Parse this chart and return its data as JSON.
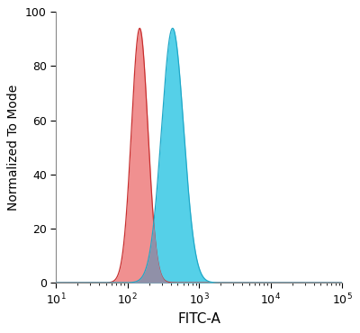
{
  "xlabel": "FITC-A",
  "ylabel": "Normalized To Mode",
  "xlim_log": [
    1,
    5
  ],
  "ylim": [
    0,
    100
  ],
  "yticks": [
    0,
    20,
    40,
    60,
    80,
    100
  ],
  "xtick_positions": [
    10,
    100,
    1000,
    10000,
    100000
  ],
  "red_peak_log": 2.17,
  "red_peak_height": 94,
  "red_sigma_log": 0.115,
  "blue_peak_log": 2.63,
  "blue_peak_height": 94,
  "blue_sigma_log": 0.155,
  "red_fill_color": "#f09090",
  "red_edge_color": "#c83030",
  "blue_fill_color": "#55d0e8",
  "blue_edge_color": "#20a8c8",
  "overlap_color": "#9090a8",
  "background_color": "#ffffff",
  "fig_bg_color": "#ffffff",
  "xlabel_fontsize": 11,
  "ylabel_fontsize": 10,
  "tick_fontsize": 9
}
